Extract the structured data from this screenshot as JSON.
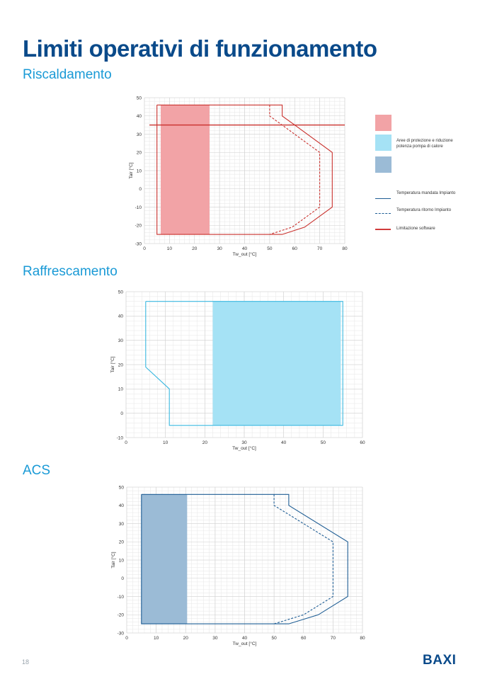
{
  "page": {
    "title": "Limiti operativi di funzionamento",
    "page_number": "18",
    "brand": "BAXI"
  },
  "sections": {
    "heating": "Riscaldamento",
    "cooling": "Raffrescamento",
    "dhw": "ACS"
  },
  "legend": {
    "area_label": "Aree di protezione e riduzione potenza pompa di calore",
    "flow_label": "Temperatura mandata Impianto",
    "return_label": "Temperatura ritorno Impianto",
    "software_label": "Limitazione software",
    "colors": [
      "#f2a3a6",
      "#a5e2f5",
      "#9bbbd6"
    ],
    "flow_color": "#1e5d94",
    "software_color": "#d13b3b"
  },
  "chart_data": [
    {
      "id": "heating",
      "type": "area",
      "xlabel": "Tw_out [°C]",
      "ylabel": "Tair [°C]",
      "xlim": [
        0,
        80
      ],
      "ylim": [
        -30,
        50
      ],
      "xticks": [
        0,
        10,
        20,
        30,
        40,
        50,
        60,
        70,
        80
      ],
      "yticks": [
        -30,
        -20,
        -10,
        0,
        10,
        20,
        30,
        40,
        50
      ],
      "line_color": "#c9302c",
      "fill_color": "#f2a3a6",
      "series": [
        {
          "name": "Temperatura mandata Impianto",
          "style": "solid",
          "x": [
            5,
            55,
            55,
            60,
            75,
            75,
            64,
            55,
            5,
            5
          ],
          "y": [
            46,
            46,
            40,
            35,
            20,
            -10,
            -21,
            -25,
            -25,
            46
          ]
        },
        {
          "name": "Temperatura ritorno Impianto",
          "style": "dashed",
          "x": [
            50,
            50,
            70,
            70,
            59,
            50
          ],
          "y": [
            46,
            40,
            20,
            -10,
            -21,
            -25
          ]
        },
        {
          "name": "Limitazione software",
          "style": "solid",
          "x": [
            2,
            80
          ],
          "y": [
            35,
            35
          ]
        }
      ],
      "shaded_area": {
        "x": [
          6.5,
          26
        ],
        "y": [
          -25,
          46
        ]
      }
    },
    {
      "id": "cooling",
      "type": "area",
      "xlabel": "Tw_out [°C]",
      "ylabel": "Tair [°C]",
      "xlim": [
        0,
        60
      ],
      "ylim": [
        -10,
        50
      ],
      "xticks": [
        0,
        10,
        20,
        30,
        40,
        50,
        60
      ],
      "yticks": [
        -10,
        0,
        10,
        20,
        30,
        40,
        50
      ],
      "line_color": "#3ab8e0",
      "fill_color": "#a5e2f5",
      "series": [
        {
          "name": "Temperatura mandata Impianto",
          "style": "solid",
          "x": [
            5,
            55,
            55,
            11,
            11,
            5,
            5
          ],
          "y": [
            46,
            46,
            -5,
            -5,
            10,
            19,
            46
          ]
        }
      ],
      "shaded_area": {
        "x": [
          22,
          54.5
        ],
        "y": [
          -5,
          46
        ]
      }
    },
    {
      "id": "dhw",
      "type": "area",
      "xlabel": "Tw_out [°C]",
      "ylabel": "Tair [°C]",
      "xlim": [
        0,
        80
      ],
      "ylim": [
        -30,
        50
      ],
      "xticks": [
        0,
        10,
        20,
        30,
        40,
        50,
        60,
        70,
        80
      ],
      "yticks": [
        -30,
        -20,
        -10,
        0,
        10,
        20,
        30,
        40,
        50
      ],
      "line_color": "#1e5d94",
      "fill_color": "#9bbbd6",
      "series": [
        {
          "name": "Temperatura mandata Impianto",
          "style": "solid",
          "x": [
            5,
            55,
            55,
            75,
            75,
            65,
            55,
            5,
            5
          ],
          "y": [
            46,
            46,
            40,
            20,
            -10,
            -20,
            -25,
            -25,
            46
          ]
        },
        {
          "name": "Temperatura ritorno Impianto",
          "style": "dashed",
          "x": [
            50,
            50,
            70,
            70,
            60,
            50
          ],
          "y": [
            46,
            40,
            20,
            -10,
            -20,
            -25
          ]
        }
      ],
      "shaded_area": {
        "x": [
          5,
          20.5
        ],
        "y": [
          -25,
          46
        ]
      }
    }
  ]
}
